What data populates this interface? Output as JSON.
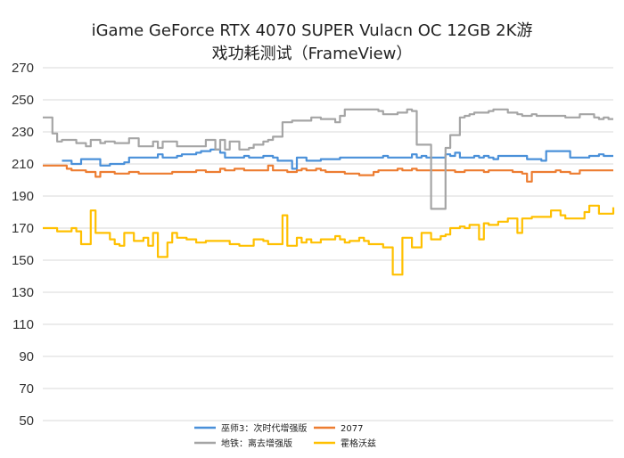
{
  "chart_data": {
    "type": "line",
    "title": "iGame GeForce RTX 4070 SUPER Vulacn OC 12GB 2K游戏功耗测试（FrameView）",
    "title_line1": "iGame GeForce RTX 4070 SUPER Vulacn OC 12GB 2K游",
    "title_line2": "戏功耗测试（FrameView）",
    "xlabel": "",
    "ylabel": "",
    "ylim": [
      50,
      270
    ],
    "yticks": [
      50,
      70,
      90,
      110,
      130,
      150,
      170,
      190,
      210,
      230,
      250,
      270
    ],
    "ytick_labels": [
      "50",
      "70",
      "90",
      "110",
      "130",
      "150",
      "170",
      "190",
      "210",
      "230",
      "250",
      "270"
    ],
    "grid": true,
    "legend_position": "bottom",
    "x": [
      0,
      1,
      2,
      3,
      4,
      5,
      6,
      7,
      8,
      9,
      10,
      11,
      12,
      13,
      14,
      15,
      16,
      17,
      18,
      19,
      20,
      21,
      22,
      23,
      24,
      25,
      26,
      27,
      28,
      29,
      30,
      31,
      32,
      33,
      34,
      35,
      36,
      37,
      38,
      39,
      40,
      41,
      42,
      43,
      44,
      45,
      46,
      47,
      48,
      49,
      50,
      51,
      52,
      53,
      54,
      55,
      56,
      57,
      58,
      59,
      60,
      61,
      62,
      63,
      64,
      65,
      66,
      67,
      68,
      69,
      70,
      71,
      72,
      73,
      74,
      75,
      76,
      77,
      78,
      79,
      80,
      81,
      82,
      83,
      84,
      85,
      86,
      87,
      88,
      89,
      90,
      91,
      92,
      93,
      94,
      95,
      96,
      97,
      98,
      99,
      100,
      101,
      102,
      103,
      104,
      105,
      106,
      107,
      108,
      109,
      110,
      111,
      112,
      113,
      114,
      115,
      116,
      117,
      118,
      119
    ],
    "series": [
      {
        "name": "巫师3：次时代增强版",
        "color": "#4a90d9",
        "values": [
          null,
          null,
          null,
          null,
          212,
          212,
          210,
          210,
          213,
          213,
          213,
          213,
          209,
          209,
          210,
          210,
          210,
          211,
          214,
          214,
          214,
          214,
          214,
          214,
          216,
          214,
          214,
          214,
          215,
          216,
          216,
          216,
          217,
          218,
          218,
          219,
          219,
          217,
          214,
          214,
          214,
          214,
          215,
          214,
          214,
          214,
          215,
          215,
          214,
          212,
          212,
          212,
          207,
          214,
          214,
          212,
          212,
          212,
          213,
          213,
          213,
          213,
          214,
          214,
          214,
          214,
          214,
          214,
          214,
          214,
          214,
          215,
          214,
          214,
          214,
          214,
          214,
          216,
          214,
          215,
          214,
          214,
          214,
          214,
          216,
          215,
          217,
          214,
          214,
          214,
          215,
          214,
          215,
          214,
          213,
          215,
          215,
          215,
          215,
          215,
          215,
          213,
          213,
          213,
          212,
          218,
          218,
          218,
          218,
          218,
          214,
          214,
          214,
          214,
          215,
          215,
          216,
          215,
          215,
          215
        ]
      },
      {
        "name": "2077",
        "color": "#ed7d31",
        "values": [
          209,
          209,
          209,
          209,
          209,
          207,
          206,
          206,
          206,
          205,
          205,
          202,
          205,
          205,
          205,
          204,
          204,
          204,
          205,
          205,
          204,
          204,
          204,
          204,
          204,
          204,
          204,
          205,
          205,
          205,
          205,
          205,
          206,
          206,
          205,
          205,
          205,
          207,
          206,
          206,
          207,
          207,
          206,
          206,
          206,
          206,
          206,
          209,
          206,
          206,
          206,
          205,
          205,
          206,
          207,
          206,
          206,
          207,
          206,
          205,
          205,
          205,
          205,
          204,
          204,
          204,
          203,
          203,
          203,
          205,
          206,
          206,
          206,
          206,
          207,
          206,
          206,
          207,
          206,
          206,
          206,
          206,
          206,
          206,
          206,
          206,
          205,
          205,
          206,
          206,
          206,
          206,
          205,
          206,
          206,
          206,
          206,
          206,
          205,
          205,
          204,
          199,
          205,
          205,
          205,
          205,
          205,
          206,
          205,
          205,
          204,
          204,
          206,
          206,
          206,
          206,
          206,
          206,
          206,
          206
        ]
      },
      {
        "name": "地铁：离去增强版",
        "color": "#a5a5a5",
        "values": [
          239,
          239,
          229,
          224,
          225,
          225,
          225,
          223,
          223,
          221,
          225,
          225,
          223,
          224,
          224,
          223,
          223,
          223,
          226,
          226,
          221,
          221,
          221,
          224,
          220,
          224,
          224,
          224,
          221,
          221,
          221,
          221,
          221,
          221,
          225,
          225,
          219,
          225,
          219,
          224,
          224,
          219,
          219,
          220,
          222,
          222,
          224,
          225,
          227,
          227,
          236,
          236,
          237,
          237,
          237,
          237,
          239,
          239,
          238,
          238,
          238,
          236,
          240,
          244,
          244,
          244,
          244,
          244,
          244,
          244,
          243,
          241,
          241,
          241,
          242,
          242,
          244,
          243,
          222,
          222,
          222,
          182,
          182,
          182,
          220,
          228,
          228,
          239,
          240,
          241,
          242,
          242,
          242,
          243,
          244,
          244,
          244,
          242,
          242,
          241,
          240,
          240,
          241,
          240,
          240,
          240,
          240,
          240,
          240,
          239,
          239,
          239,
          241,
          241,
          241,
          239,
          238,
          239,
          238,
          238
        ]
      },
      {
        "name": "霍格沃兹",
        "color": "#ffc000",
        "values": [
          170,
          170,
          170,
          168,
          168,
          168,
          170,
          168,
          160,
          160,
          181,
          167,
          167,
          167,
          163,
          160,
          159,
          167,
          167,
          162,
          162,
          164,
          159,
          167,
          152,
          152,
          161,
          167,
          164,
          164,
          163,
          163,
          161,
          161,
          162,
          162,
          162,
          162,
          162,
          160,
          160,
          159,
          159,
          159,
          163,
          163,
          162,
          160,
          160,
          160,
          178,
          159,
          159,
          164,
          161,
          163,
          161,
          161,
          163,
          163,
          163,
          165,
          163,
          161,
          162,
          162,
          164,
          162,
          160,
          160,
          160,
          158,
          158,
          141,
          141,
          164,
          164,
          158,
          158,
          167,
          167,
          163,
          163,
          165,
          166,
          170,
          170,
          171,
          170,
          172,
          172,
          163,
          173,
          172,
          172,
          174,
          174,
          176,
          176,
          167,
          176,
          176,
          177,
          177,
          177,
          177,
          181,
          181,
          178,
          176,
          176,
          176,
          176,
          180,
          184,
          184,
          179,
          179,
          179,
          183
        ]
      }
    ]
  }
}
